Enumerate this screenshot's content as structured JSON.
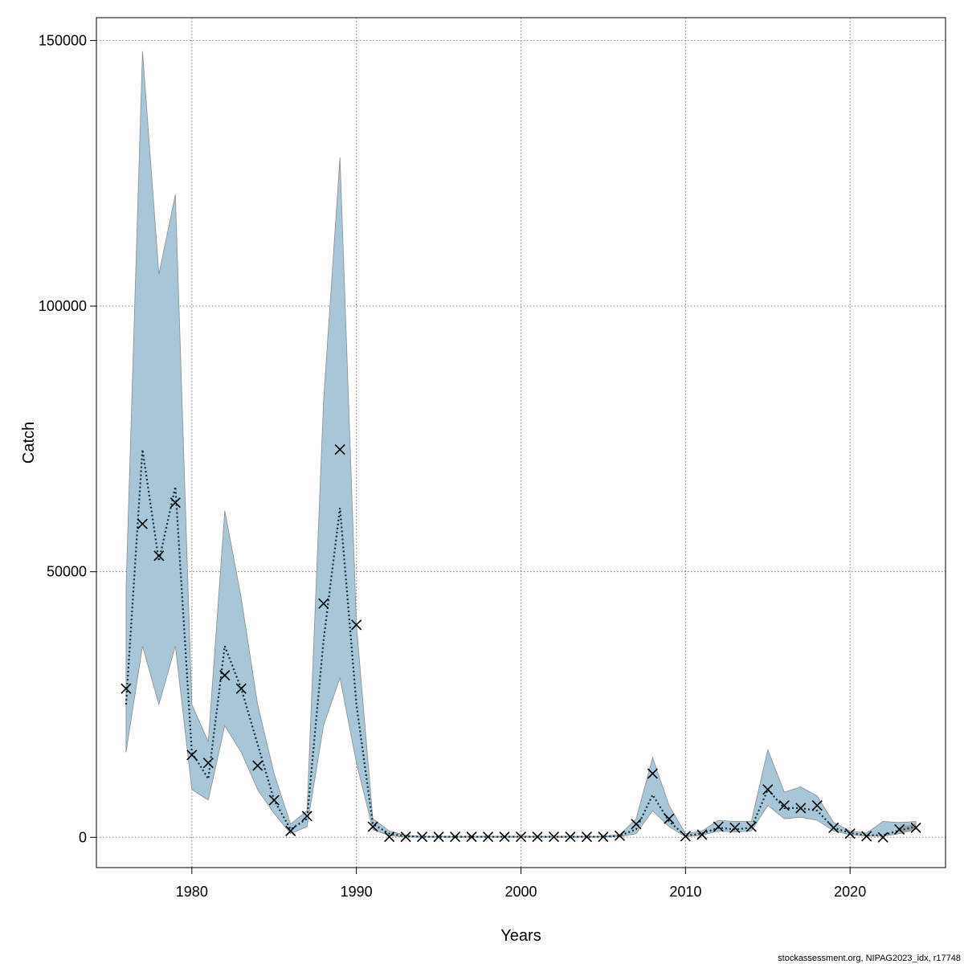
{
  "chart_data": {
    "type": "line",
    "xlabel": "Years",
    "ylabel": "Catch",
    "xlim": [
      1974.2,
      2025.8
    ],
    "ylim": [
      -5700,
      154300
    ],
    "x_ticks": [
      1980,
      1990,
      2000,
      2010,
      2020
    ],
    "y_ticks": [
      0,
      50000,
      100000,
      150000
    ],
    "x_tick_labels": [
      "1980",
      "1990",
      "2000",
      "2010",
      "2020"
    ],
    "y_tick_labels": [
      "0",
      "50000",
      "100000",
      "150000"
    ],
    "grid": true,
    "footnote": "stockassessment.org, NIPAG2023_idx, r17748",
    "colors": {
      "band_fill": "#a7c7d8",
      "band_edge": "#8c8c8c",
      "estimate_line": "#0d2d3a",
      "observed_marker": "#000000",
      "grid": "#7a7a7a",
      "recent_band": "#9a9a9a"
    },
    "series": [
      {
        "kind": "estimate",
        "x": [
          1976,
          1977,
          1978,
          1979,
          1980,
          1981,
          1982,
          1983,
          1984,
          1985,
          1986,
          1987,
          1988,
          1989,
          1990,
          1991,
          1992,
          1993,
          1994,
          1995,
          1996,
          1997,
          1998,
          1999,
          2000,
          2001,
          2002,
          2003,
          2004,
          2005,
          2006,
          2007,
          2008,
          2009,
          2010,
          2011,
          2012,
          2013,
          2014,
          2015,
          2016,
          2017,
          2018,
          2019,
          2020,
          2021,
          2022,
          2023,
          2024
        ],
        "values": [
          25000,
          73000,
          52000,
          66000,
          16000,
          11000,
          36000,
          28000,
          17500,
          7000,
          1500,
          3500,
          37000,
          62000,
          25000,
          2500,
          700,
          200,
          100,
          100,
          100,
          100,
          100,
          100,
          100,
          100,
          100,
          100,
          100,
          100,
          300,
          1500,
          8000,
          3000,
          300,
          700,
          1800,
          1500,
          1800,
          9000,
          5500,
          5500,
          5000,
          1800,
          800,
          400,
          400,
          1300,
          2000
        ],
        "lower": [
          16000,
          36000,
          25000,
          36000,
          9000,
          7000,
          21000,
          16000,
          9000,
          4500,
          700,
          2000,
          21000,
          30000,
          14000,
          1500,
          300,
          80,
          40,
          40,
          40,
          40,
          40,
          40,
          40,
          40,
          40,
          40,
          40,
          40,
          100,
          700,
          5000,
          2000,
          100,
          400,
          1200,
          1000,
          1200,
          6000,
          3500,
          3800,
          3200,
          1200,
          500,
          200,
          200,
          700,
          1500
        ],
        "upper": [
          47000,
          148000,
          106000,
          121000,
          25000,
          18000,
          61500,
          45000,
          25000,
          12000,
          2500,
          5000,
          82000,
          128000,
          40000,
          3500,
          1200,
          400,
          200,
          200,
          200,
          200,
          200,
          200,
          200,
          200,
          200,
          200,
          200,
          200,
          500,
          3500,
          15000,
          6000,
          700,
          1200,
          3200,
          3000,
          3000,
          16500,
          8500,
          9500,
          7800,
          2800,
          1200,
          800,
          3000,
          2800,
          3000
        ]
      },
      {
        "kind": "observed",
        "x": [
          1976,
          1977,
          1978,
          1979,
          1980,
          1981,
          1982,
          1983,
          1984,
          1985,
          1986,
          1987,
          1988,
          1989,
          1990,
          1991,
          1992,
          1993,
          1994,
          1995,
          1996,
          1997,
          1998,
          1999,
          2000,
          2001,
          2002,
          2003,
          2004,
          2005,
          2006,
          2007,
          2008,
          2009,
          2010,
          2011,
          2012,
          2013,
          2014,
          2015,
          2016,
          2017,
          2018,
          2019,
          2020,
          2021,
          2022,
          2023,
          2024
        ],
        "values": [
          28000,
          59000,
          53000,
          63000,
          15500,
          14000,
          30500,
          28000,
          13500,
          7000,
          1200,
          4000,
          44000,
          73000,
          40000,
          2000,
          100,
          100,
          100,
          100,
          100,
          100,
          100,
          100,
          100,
          100,
          100,
          100,
          100,
          100,
          300,
          2500,
          12000,
          3500,
          200,
          500,
          2000,
          1800,
          2000,
          9000,
          6000,
          5500,
          6000,
          1800,
          700,
          200,
          0,
          1500,
          1800
        ]
      }
    ]
  }
}
